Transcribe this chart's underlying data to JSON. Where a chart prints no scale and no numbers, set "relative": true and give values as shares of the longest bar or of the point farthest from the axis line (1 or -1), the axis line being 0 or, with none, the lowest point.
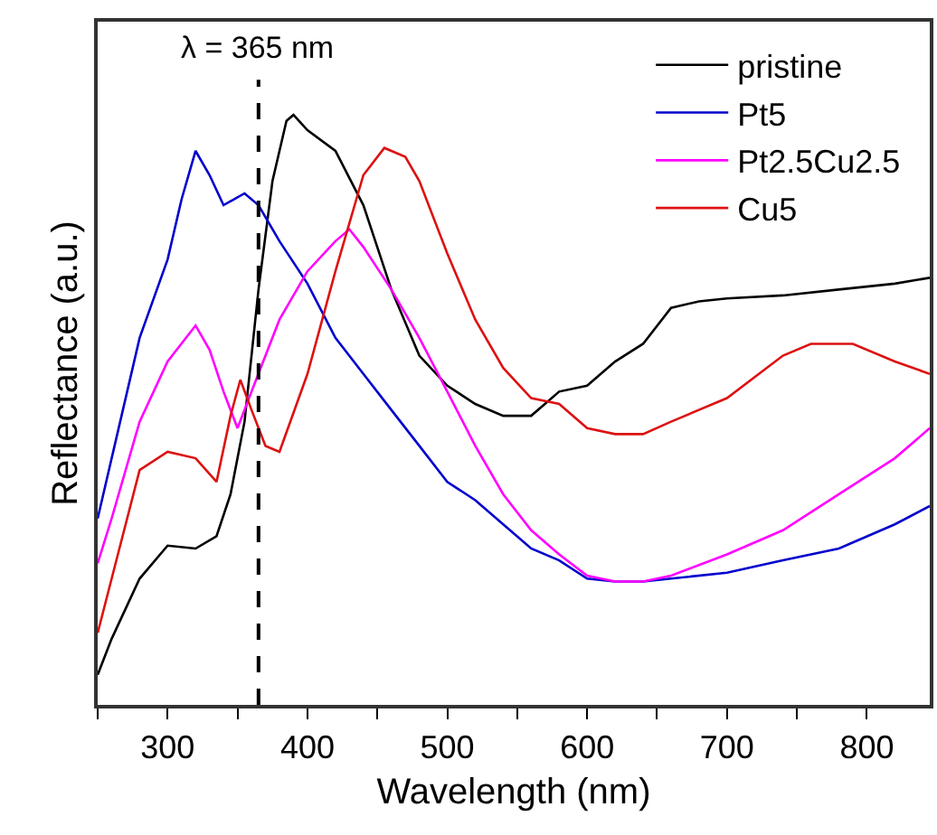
{
  "chart_data": {
    "type": "line",
    "xlabel": "Wavelength (nm)",
    "ylabel": "Reflectance (a.u.)",
    "relative": true,
    "xlim": [
      250,
      845
    ],
    "xticks": [
      {
        "value": 250,
        "label": null
      },
      300,
      {
        "value": 350,
        "label": null
      },
      400,
      {
        "value": 450,
        "label": null
      },
      500,
      {
        "value": 550,
        "label": null
      },
      600,
      {
        "value": 650,
        "label": null
      },
      700,
      {
        "value": 750,
        "label": null
      },
      800
    ],
    "legend": "top right",
    "marker": "none",
    "line_style": "solid",
    "ref_lines": [
      {
        "axis": "x",
        "value": 365,
        "label": "λ = 365 nm",
        "color": "#000000",
        "line_style": "dashed"
      }
    ],
    "series": [
      {
        "name": "pristine",
        "color": "#000000",
        "x": [
          250,
          260,
          280,
          300,
          320,
          335,
          345,
          355,
          365,
          375,
          385,
          390,
          400,
          420,
          440,
          460,
          480,
          500,
          520,
          540,
          560,
          580,
          600,
          620,
          640,
          660,
          680,
          700,
          740,
          780,
          820,
          845
        ],
        "values": [
          0.051,
          0.112,
          0.214,
          0.27,
          0.265,
          0.286,
          0.357,
          0.48,
          0.704,
          0.888,
          0.99,
          1.0,
          0.974,
          0.939,
          0.847,
          0.704,
          0.592,
          0.541,
          0.51,
          0.49,
          0.49,
          0.531,
          0.541,
          0.582,
          0.612,
          0.673,
          0.684,
          0.689,
          0.694,
          0.704,
          0.714,
          0.724
        ]
      },
      {
        "name": "Pt5",
        "color": "#0000cc",
        "x": [
          250,
          260,
          280,
          300,
          310,
          320,
          330,
          340,
          355,
          365,
          380,
          400,
          420,
          440,
          460,
          480,
          500,
          520,
          540,
          560,
          580,
          600,
          620,
          640,
          660,
          700,
          740,
          780,
          820,
          845
        ],
        "values": [
          0.316,
          0.418,
          0.622,
          0.755,
          0.857,
          0.939,
          0.898,
          0.847,
          0.867,
          0.847,
          0.786,
          0.714,
          0.622,
          0.561,
          0.5,
          0.439,
          0.378,
          0.347,
          0.306,
          0.265,
          0.245,
          0.214,
          0.209,
          0.209,
          0.214,
          0.224,
          0.245,
          0.265,
          0.306,
          0.337
        ]
      },
      {
        "name": "Pt2.5Cu2.5",
        "color": "#ff00ff",
        "x": [
          250,
          260,
          280,
          300,
          320,
          330,
          340,
          350,
          360,
          370,
          380,
          400,
          420,
          430,
          440,
          460,
          480,
          500,
          520,
          540,
          560,
          580,
          600,
          620,
          640,
          660,
          700,
          740,
          780,
          820,
          845
        ],
        "values": [
          0.24,
          0.316,
          0.48,
          0.582,
          0.643,
          0.602,
          0.531,
          0.469,
          0.531,
          0.592,
          0.653,
          0.735,
          0.786,
          0.806,
          0.776,
          0.704,
          0.622,
          0.531,
          0.439,
          0.357,
          0.296,
          0.255,
          0.219,
          0.209,
          0.209,
          0.219,
          0.255,
          0.296,
          0.357,
          0.418,
          0.469
        ]
      },
      {
        "name": "Cu5",
        "color": "#dd1111",
        "x": [
          250,
          260,
          280,
          300,
          320,
          335,
          345,
          352,
          360,
          370,
          380,
          400,
          420,
          440,
          455,
          470,
          480,
          500,
          520,
          540,
          560,
          580,
          600,
          620,
          640,
          660,
          700,
          740,
          760,
          790,
          820,
          845
        ],
        "values": [
          0.122,
          0.214,
          0.398,
          0.429,
          0.418,
          0.378,
          0.49,
          0.551,
          0.5,
          0.439,
          0.429,
          0.561,
          0.735,
          0.898,
          0.944,
          0.929,
          0.888,
          0.765,
          0.653,
          0.571,
          0.52,
          0.51,
          0.469,
          0.459,
          0.459,
          0.48,
          0.52,
          0.592,
          0.612,
          0.612,
          0.582,
          0.561
        ]
      }
    ]
  }
}
